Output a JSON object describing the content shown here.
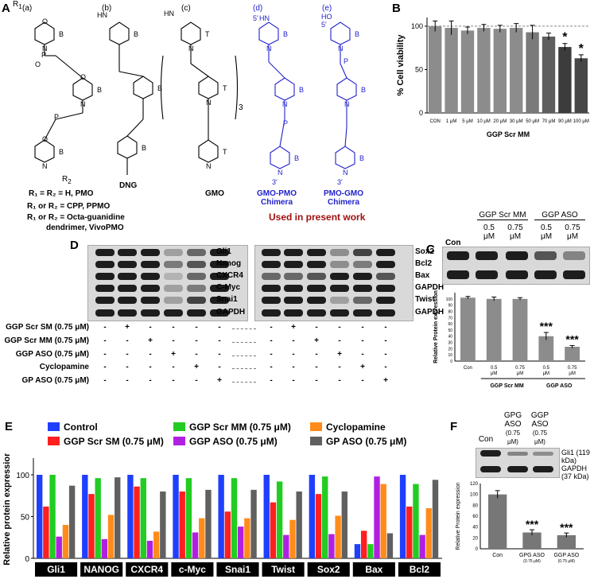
{
  "panels": {
    "A": "A",
    "B": "B",
    "C": "C",
    "D": "D",
    "E": "E",
    "F": "F"
  },
  "panelA": {
    "structs": [
      "(a)",
      "(b)",
      "(c)",
      "(d)",
      "(e)"
    ],
    "r1": "R",
    "r1sub": "1",
    "r2": "R",
    "r2sub": "2",
    "leg1": "R₁ = R₂ = H, PMO",
    "leg2": "R₁ or R₂ = CPP, PPMO",
    "leg3": "R₁ or R₂ = Octa-guanidine",
    "leg4": "dendrimer, VivoPMO",
    "dng": "DNG",
    "gmo": "GMO",
    "chimera1": "GMO-PMO",
    "chimera2": "PMO-GMO",
    "chimera_word": "Chimera",
    "used": "Used in present work",
    "bracket_n": "3",
    "atoms": {
      "B": "B",
      "T": "T",
      "N": "N",
      "O": "O",
      "P": "P",
      "H": "H",
      "NH": "HN",
      "OH": "HO",
      "five": "5'",
      "three": "3'"
    }
  },
  "chart_data": [
    {
      "type": "bar",
      "panel": "B",
      "title": "",
      "xlabel": "GGP Scr MM",
      "ylabel": "% Cell viability",
      "ylim": [
        0,
        110
      ],
      "yticks": [
        0,
        50,
        100
      ],
      "categories": [
        "CON",
        "1 μM",
        "5 μM",
        "10 μM",
        "20 μM",
        "30 μM",
        "50 μM",
        "70 μM",
        "90 μM",
        "100 μM"
      ],
      "values": [
        100,
        98,
        95,
        98,
        97,
        98,
        93,
        88,
        76,
        63
      ],
      "errors": [
        6,
        8,
        4,
        4,
        4,
        5,
        8,
        4,
        4,
        4
      ],
      "significance": [
        "",
        "",
        "",
        "",
        "",
        "",
        "",
        "",
        "*",
        "*"
      ],
      "colors": [
        "#8c8c8c",
        "#8c8c8c",
        "#8c8c8c",
        "#8c8c8c",
        "#8c8c8c",
        "#8c8c8c",
        "#7a7a7a",
        "#5e5e5e",
        "#3c3c3c",
        "#474747"
      ],
      "reference_line": 100
    },
    {
      "type": "bar",
      "panel": "C",
      "title": "",
      "xlabel": "",
      "ylabel": "Relative Protein expression",
      "ylim": [
        0,
        110
      ],
      "yticks": [
        0,
        10,
        20,
        30,
        40,
        50,
        60,
        70,
        80,
        90,
        100
      ],
      "categories": [
        "Con",
        "0.5 μM",
        "0.75 μM",
        "0.5 μM",
        "0.75 μM"
      ],
      "groups": [
        "GGP Scr MM",
        "GGP ASO"
      ],
      "values": [
        102,
        100,
        100,
        40,
        23
      ],
      "errors": [
        2,
        3,
        2,
        6,
        2
      ],
      "significance": [
        "",
        "",
        "",
        "***",
        "***"
      ]
    },
    {
      "type": "bar",
      "panel": "E",
      "title": "",
      "ylabel": "Relative protein expression",
      "ylim": [
        0,
        120
      ],
      "yticks": [
        0,
        50,
        100
      ],
      "categories": [
        "Gli1",
        "NANOG",
        "CXCR4",
        "c-Myc",
        "Snai1",
        "Twist",
        "Sox2",
        "Bax",
        "Bcl2"
      ],
      "series": [
        {
          "name": "Control",
          "color": "#1f3fff",
          "values": [
            100,
            100,
            100,
            100,
            100,
            100,
            100,
            17,
            100
          ]
        },
        {
          "name": "GGP Scr SM (0.75 μM)",
          "color": "#ff1f1f",
          "values": [
            62,
            77,
            86,
            80,
            56,
            67,
            77,
            33,
            62
          ]
        },
        {
          "name": "GGP Scr MM (0.75 μM)",
          "color": "#22cc22",
          "values": [
            100,
            96,
            96,
            96,
            96,
            92,
            98,
            17,
            89
          ]
        },
        {
          "name": "GGP ASO (0.75 μM)",
          "color": "#b020e0",
          "values": [
            26,
            23,
            21,
            31,
            38,
            28,
            29,
            98,
            28
          ]
        },
        {
          "name": "Cyclopamine",
          "color": "#ff8c1a",
          "values": [
            40,
            52,
            32,
            48,
            48,
            46,
            51,
            89,
            60
          ]
        },
        {
          "name": "GP ASO (0.75 μM)",
          "color": "#606060",
          "values": [
            87,
            97,
            80,
            82,
            82,
            80,
            80,
            30,
            94
          ]
        }
      ]
    },
    {
      "type": "bar",
      "panel": "F",
      "title": "",
      "ylabel": "Relative Protein expression",
      "ylim": [
        0,
        120
      ],
      "yticks": [
        0,
        20,
        40,
        60,
        80,
        100,
        120
      ],
      "categories": [
        "Con",
        "GPG ASO",
        "GGP ASO"
      ],
      "sublabels": [
        "",
        "(0.75 μM)",
        "(0.75 μM)"
      ],
      "values": [
        100,
        30,
        25
      ],
      "errors": [
        7,
        5,
        4
      ],
      "significance": [
        "",
        "***",
        "***"
      ]
    }
  ],
  "panelC": {
    "con": "Con",
    "grp1": "GGP Scr MM",
    "grp2": "GGP ASO",
    "conc1": "0.5",
    "conc2": "0.75",
    "unit": "μM"
  },
  "panelD": {
    "left_labels": [
      "Gli1",
      "Nanog",
      "CXCR4",
      "C-Myc",
      "Snai1",
      "GAPDH"
    ],
    "right_labels": [
      "Sox2",
      "Bcl2",
      "Bax",
      "GAPDH",
      "Twist",
      "GAPDH"
    ],
    "rows": [
      "GGP Scr SM (0.75 μM)",
      "GGP Scr MM (0.75 μM)",
      "GGP ASO (0.75 μM)",
      "Cyclopamine",
      "GP ASO (0.75 μM)"
    ],
    "plus": "+",
    "minus": "-"
  },
  "panelE": {
    "legend": [
      "Control",
      "GGP Scr SM (0.75 μM)",
      "GGP Scr MM (0.75 μM)",
      "GGP ASO (0.75 μM)",
      "Cyclopamine",
      "GP ASO (0.75 μM)"
    ]
  },
  "panelF": {
    "con": "Con",
    "lane2": "GPG",
    "lane3": "GGP",
    "aso": "ASO",
    "conc": "(0.75",
    "conc2": "μM)",
    "gli": "Gli1 (119 kDa)",
    "gapdh": "GAPDH (37 kDa)"
  }
}
